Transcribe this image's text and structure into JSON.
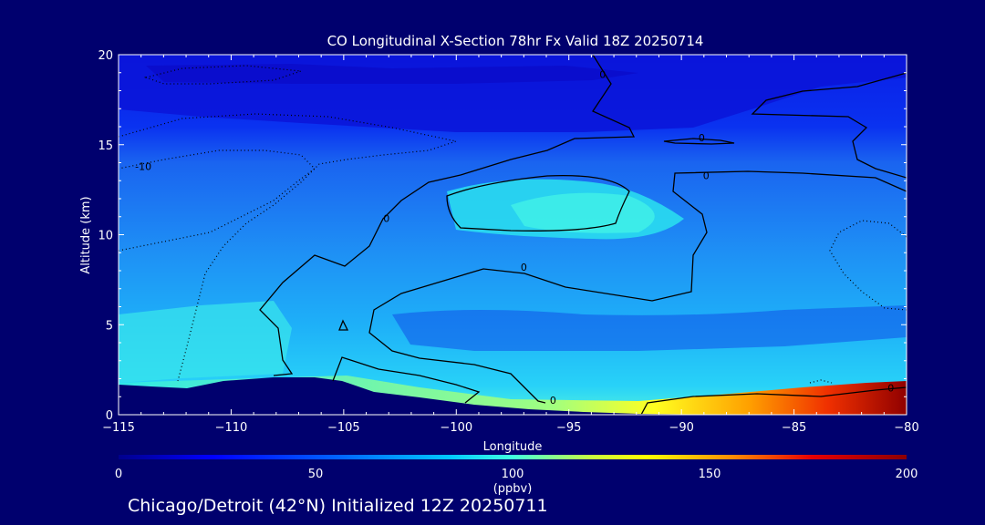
{
  "chart_data": {
    "type": "heatmap",
    "title": "CO Longitudinal X-Section 78hr  Fx Valid 18Z 20250714",
    "xlabel": "Longitude",
    "ylabel": "Altitude (km)",
    "xlim": [
      -115,
      -80
    ],
    "ylim": [
      0,
      20
    ],
    "x_ticks": [
      -115,
      -110,
      -105,
      -100,
      -95,
      -90,
      -85,
      -80
    ],
    "y_ticks": [
      0,
      5,
      10,
      15,
      20
    ],
    "colorbar": {
      "min": 0,
      "max": 200,
      "ticks": [
        0,
        50,
        100,
        150,
        200
      ],
      "units": "(ppbv)",
      "colors": [
        "#00008c",
        "#0000ff",
        "#0064ff",
        "#00c8ff",
        "#40ffe0",
        "#c8ff40",
        "#ffff00",
        "#ff8c00",
        "#e60000",
        "#8c0000"
      ]
    },
    "contour_labels": [
      "-10",
      "0",
      "0",
      "0",
      "0",
      "0",
      "0",
      "0"
    ],
    "background_color": "#00006e"
  },
  "footer": {
    "caption": "Chicago/Detroit (42°N) Initialized 12Z 20250711"
  }
}
